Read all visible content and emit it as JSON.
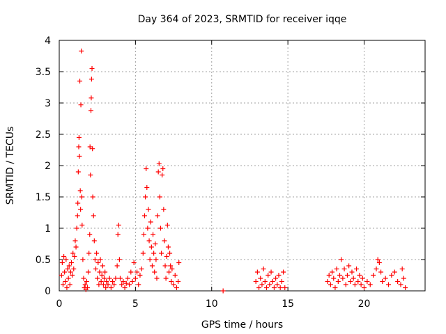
{
  "chart_data": {
    "type": "scatter",
    "title": "Day 364 of 2023, SRMTID for receiver iqqe",
    "xlabel": "GPS time / hours",
    "ylabel": "SRMTID / TECUs",
    "xlim": [
      0,
      24
    ],
    "ylim": [
      0,
      4
    ],
    "xticks": [
      0,
      5,
      10,
      15,
      20
    ],
    "yticks": [
      0,
      0.5,
      1,
      1.5,
      2,
      2.5,
      3,
      3.5,
      4
    ],
    "xtick_labels": [
      "0",
      "5",
      "10",
      "15",
      "20"
    ],
    "ytick_labels": [
      "0",
      "0.5",
      "1",
      "1.5",
      "2",
      "2.5",
      "3",
      "3.5",
      "4"
    ],
    "grid": true,
    "marker": "+",
    "marker_color": "#ff0000",
    "series": [
      {
        "name": "SRMTID",
        "points": [
          [
            0.15,
            0.25
          ],
          [
            0.2,
            0.45
          ],
          [
            0.25,
            0.1
          ],
          [
            0.3,
            0.55
          ],
          [
            0.35,
            0.3
          ],
          [
            0.4,
            0.15
          ],
          [
            0.45,
            0.5
          ],
          [
            0.5,
            0.05
          ],
          [
            0.55,
            0.35
          ],
          [
            0.6,
            0.2
          ],
          [
            0.65,
            0.4
          ],
          [
            0.7,
            0.1
          ],
          [
            0.75,
            0.3
          ],
          [
            0.8,
            0.45
          ],
          [
            0.85,
            0.25
          ],
          [
            0.9,
            0.6
          ],
          [
            0.95,
            0.35
          ],
          [
            1.0,
            0.55
          ],
          [
            1.05,
            0.8
          ],
          [
            1.1,
            0.7
          ],
          [
            1.15,
            1.0
          ],
          [
            1.2,
            1.2
          ],
          [
            1.22,
            1.4
          ],
          [
            1.25,
            1.9
          ],
          [
            1.28,
            2.3
          ],
          [
            1.3,
            2.45
          ],
          [
            1.32,
            2.15
          ],
          [
            1.35,
            3.35
          ],
          [
            1.38,
            1.6
          ],
          [
            1.4,
            1.3
          ],
          [
            1.42,
            2.97
          ],
          [
            1.45,
            3.83
          ],
          [
            1.48,
            1.5
          ],
          [
            1.5,
            1.05
          ],
          [
            1.55,
            0.5
          ],
          [
            1.6,
            0.2
          ],
          [
            1.65,
            0.05
          ],
          [
            1.7,
            0.1
          ],
          [
            1.75,
            0.02
          ],
          [
            1.8,
            0.15
          ],
          [
            1.85,
            0.05
          ],
          [
            1.9,
            0.3
          ],
          [
            1.95,
            0.6
          ],
          [
            2.0,
            0.9
          ],
          [
            2.02,
            2.3
          ],
          [
            2.05,
            1.85
          ],
          [
            2.08,
            2.88
          ],
          [
            2.1,
            3.08
          ],
          [
            2.12,
            3.38
          ],
          [
            2.15,
            3.55
          ],
          [
            2.18,
            2.27
          ],
          [
            2.2,
            1.5
          ],
          [
            2.25,
            1.2
          ],
          [
            2.3,
            0.8
          ],
          [
            2.35,
            0.5
          ],
          [
            2.4,
            0.35
          ],
          [
            2.45,
            0.6
          ],
          [
            2.5,
            0.2
          ],
          [
            2.55,
            0.45
          ],
          [
            2.6,
            0.1
          ],
          [
            2.65,
            0.3
          ],
          [
            2.7,
            0.5
          ],
          [
            2.75,
            0.15
          ],
          [
            2.8,
            0.25
          ],
          [
            2.85,
            0.4
          ],
          [
            2.9,
            0.1
          ],
          [
            2.95,
            0.2
          ],
          [
            3.0,
            0.3
          ],
          [
            3.05,
            0.05
          ],
          [
            3.1,
            0.15
          ],
          [
            3.2,
            0.1
          ],
          [
            3.3,
            0.2
          ],
          [
            3.4,
            0.05
          ],
          [
            3.5,
            0.15
          ],
          [
            3.6,
            0.1
          ],
          [
            3.7,
            0.2
          ],
          [
            3.8,
            0.4
          ],
          [
            3.85,
            0.9
          ],
          [
            3.9,
            1.05
          ],
          [
            3.95,
            0.5
          ],
          [
            4.0,
            0.2
          ],
          [
            4.1,
            0.1
          ],
          [
            4.2,
            0.15
          ],
          [
            4.3,
            0.05
          ],
          [
            4.4,
            0.12
          ],
          [
            4.5,
            0.2
          ],
          [
            4.6,
            0.1
          ],
          [
            4.7,
            0.3
          ],
          [
            4.8,
            0.15
          ],
          [
            4.9,
            0.45
          ],
          [
            5.0,
            0.2
          ],
          [
            5.1,
            0.3
          ],
          [
            5.2,
            0.1
          ],
          [
            5.3,
            0.25
          ],
          [
            5.4,
            0.35
          ],
          [
            5.5,
            0.6
          ],
          [
            5.55,
            0.9
          ],
          [
            5.6,
            1.2
          ],
          [
            5.65,
            1.5
          ],
          [
            5.7,
            1.95
          ],
          [
            5.75,
            1.65
          ],
          [
            5.8,
            1.0
          ],
          [
            5.85,
            1.3
          ],
          [
            5.9,
            0.8
          ],
          [
            5.95,
            0.5
          ],
          [
            6.0,
            1.1
          ],
          [
            6.05,
            0.7
          ],
          [
            6.1,
            0.4
          ],
          [
            6.15,
            0.9
          ],
          [
            6.2,
            0.6
          ],
          [
            6.25,
            0.3
          ],
          [
            6.3,
            0.75
          ],
          [
            6.35,
            0.5
          ],
          [
            6.4,
            0.2
          ],
          [
            6.45,
            1.2
          ],
          [
            6.5,
            1.9
          ],
          [
            6.55,
            2.03
          ],
          [
            6.6,
            1.5
          ],
          [
            6.65,
            1.0
          ],
          [
            6.7,
            0.6
          ],
          [
            6.75,
            1.85
          ],
          [
            6.8,
            1.95
          ],
          [
            6.85,
            1.3
          ],
          [
            6.9,
            0.8
          ],
          [
            6.95,
            0.4
          ],
          [
            7.0,
            0.2
          ],
          [
            7.05,
            0.55
          ],
          [
            7.1,
            1.05
          ],
          [
            7.15,
            0.7
          ],
          [
            7.2,
            0.3
          ],
          [
            7.25,
            0.6
          ],
          [
            7.3,
            0.4
          ],
          [
            7.35,
            0.15
          ],
          [
            7.4,
            0.35
          ],
          [
            7.5,
            0.1
          ],
          [
            7.6,
            0.25
          ],
          [
            7.7,
            0.05
          ],
          [
            7.8,
            0.15
          ],
          [
            7.85,
            0.45
          ],
          [
            10.75,
            0.0
          ],
          [
            12.9,
            0.15
          ],
          [
            13.0,
            0.3
          ],
          [
            13.1,
            0.05
          ],
          [
            13.2,
            0.2
          ],
          [
            13.3,
            0.1
          ],
          [
            13.4,
            0.35
          ],
          [
            13.5,
            0.15
          ],
          [
            13.6,
            0.05
          ],
          [
            13.7,
            0.25
          ],
          [
            13.8,
            0.1
          ],
          [
            13.9,
            0.3
          ],
          [
            14.0,
            0.15
          ],
          [
            14.1,
            0.05
          ],
          [
            14.2,
            0.2
          ],
          [
            14.3,
            0.1
          ],
          [
            14.4,
            0.25
          ],
          [
            14.5,
            0.05
          ],
          [
            14.6,
            0.15
          ],
          [
            14.7,
            0.3
          ],
          [
            14.8,
            0.05
          ],
          [
            17.6,
            0.15
          ],
          [
            17.7,
            0.25
          ],
          [
            17.8,
            0.1
          ],
          [
            17.9,
            0.3
          ],
          [
            18.0,
            0.2
          ],
          [
            18.1,
            0.05
          ],
          [
            18.2,
            0.35
          ],
          [
            18.3,
            0.15
          ],
          [
            18.4,
            0.25
          ],
          [
            18.5,
            0.5
          ],
          [
            18.6,
            0.2
          ],
          [
            18.7,
            0.35
          ],
          [
            18.8,
            0.1
          ],
          [
            18.9,
            0.25
          ],
          [
            19.0,
            0.4
          ],
          [
            19.1,
            0.15
          ],
          [
            19.2,
            0.3
          ],
          [
            19.3,
            0.2
          ],
          [
            19.4,
            0.1
          ],
          [
            19.5,
            0.35
          ],
          [
            19.6,
            0.15
          ],
          [
            19.7,
            0.25
          ],
          [
            19.8,
            0.1
          ],
          [
            19.9,
            0.2
          ],
          [
            20.0,
            0.05
          ],
          [
            20.2,
            0.15
          ],
          [
            20.4,
            0.1
          ],
          [
            20.6,
            0.25
          ],
          [
            20.8,
            0.35
          ],
          [
            20.9,
            0.5
          ],
          [
            21.0,
            0.45
          ],
          [
            21.1,
            0.3
          ],
          [
            21.2,
            0.15
          ],
          [
            21.4,
            0.2
          ],
          [
            21.6,
            0.1
          ],
          [
            21.8,
            0.25
          ],
          [
            22.0,
            0.3
          ],
          [
            22.2,
            0.15
          ],
          [
            22.4,
            0.1
          ],
          [
            22.5,
            0.35
          ],
          [
            22.6,
            0.2
          ],
          [
            22.7,
            0.05
          ]
        ]
      }
    ]
  }
}
